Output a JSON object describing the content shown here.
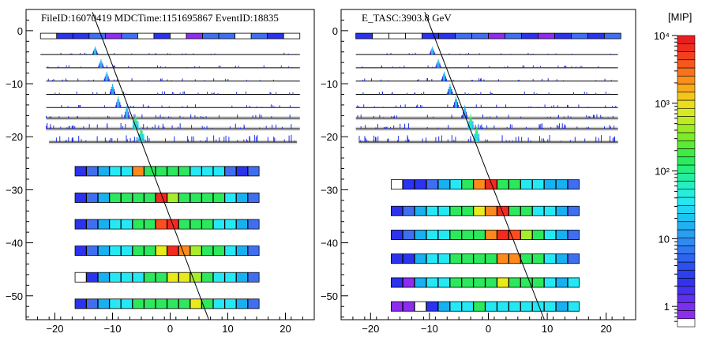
{
  "chart_data": [
    {
      "type": "heatmap",
      "title": "FileID:16070419 MDCTime:1151695867 EventID:18835",
      "xlim": [
        -25,
        25
      ],
      "ylim": [
        -54.5,
        4
      ],
      "xticks": [
        -20,
        -10,
        0,
        10,
        20
      ],
      "xtick_labels": [
        "−20",
        "−10",
        "0",
        "10",
        "20"
      ],
      "yticks": [
        0,
        -10,
        -20,
        -30,
        -40,
        -50
      ],
      "ytick_labels": [
        "0",
        "−10",
        "−20",
        "−30",
        "−40",
        "−50"
      ],
      "grid": false,
      "track": {
        "x1": -13.5,
        "y1": 3.5,
        "x2": 6.7,
        "y2": -54.5
      },
      "psd": {
        "y": -1,
        "x_range": [
          -22.5,
          22.5
        ],
        "colors": [
          "#ffffff",
          "#2b33ee",
          "#2b33ee",
          "#3f6ff0",
          "#8c2df0",
          "#3f6ff0",
          "#ffffff",
          "#2b33ee",
          "#ffffff",
          "#8c2df0",
          "#3f6ff0",
          "#3f6ff0",
          "#ffffff",
          "#3f6ff0",
          "#2b33ee",
          "#ffffff"
        ]
      },
      "stk_layers": [
        {
          "y": -4.5,
          "x_range": [
            -22.5,
            22.5
          ],
          "activity": 0.3,
          "peak_x": -13,
          "peak_h": 1.0
        },
        {
          "y": -7,
          "x_range": [
            -21.5,
            22.5
          ],
          "activity": 0.5,
          "peak_x": -12,
          "peak_h": 1.0
        },
        {
          "y": -9.5,
          "x_range": [
            -21.5,
            22.5
          ],
          "activity": 0.6,
          "peak_x": -11,
          "peak_h": 1.0
        },
        {
          "y": -12,
          "x_range": [
            -21.5,
            22.5
          ],
          "activity": 0.6,
          "peak_x": -10,
          "peak_h": 1.0
        },
        {
          "y": -14.5,
          "x_range": [
            -21.5,
            22.5
          ],
          "activity": 0.7,
          "peak_x": -9,
          "peak_h": 1.0
        },
        {
          "y": -16.5,
          "x_range": [
            -21.5,
            22.5
          ],
          "activity": 0.9,
          "peak_x": -7.5,
          "peak_h": 1.2
        },
        {
          "y": -18.5,
          "x_range": [
            -21.5,
            22.5
          ],
          "activity": 1.4,
          "peak_x": -6,
          "peak_h": 1.4
        },
        {
          "y": -21,
          "x_range": [
            -21,
            22
          ],
          "activity": 1.8,
          "peak_x": -5,
          "peak_h": 1.4
        }
      ],
      "bgo_layers": [
        {
          "y": -26.5,
          "x0": -16.5,
          "colors": [
            "#2b33ee",
            "#3f6ff0",
            "#17b0f0",
            "#25e8f5",
            "#25e8f5",
            "#ff8a1c",
            "#2ce85c",
            "#2ce85c",
            "#2ce85c",
            "#2ce85c",
            "#25e8f5",
            "#25e8f5",
            "#25e8f5",
            "#3f6ff0",
            "#2b33ee",
            "#3f6ff0"
          ]
        },
        {
          "y": -31.5,
          "x0": -16.5,
          "colors": [
            "#2b33ee",
            "#3f6ff0",
            "#17b0f0",
            "#2ce85c",
            "#2ce85c",
            "#2ce85c",
            "#2ce85c",
            "#f22a1f",
            "#a7ee2a",
            "#2ce85c",
            "#2ce85c",
            "#2ce85c",
            "#2ce85c",
            "#25e8f5",
            "#17b0f0",
            "#3f6ff0"
          ]
        },
        {
          "y": -36.5,
          "x0": -16.5,
          "colors": [
            "#2b33ee",
            "#3f6ff0",
            "#17b0f0",
            "#25e8f5",
            "#25e8f5",
            "#2ce85c",
            "#2ce85c",
            "#ff4d1f",
            "#f22a1f",
            "#2ce85c",
            "#2ce85c",
            "#2ce85c",
            "#25e8f5",
            "#25e8f5",
            "#17b0f0",
            "#3f6ff0"
          ]
        },
        {
          "y": -41.5,
          "x0": -16.5,
          "colors": [
            "#2b33ee",
            "#3f6ff0",
            "#17b0f0",
            "#25e8f5",
            "#25e8f5",
            "#2ce85c",
            "#2ce85c",
            "#e8ea1c",
            "#f22a1f",
            "#ff8a1c",
            "#a7ee2a",
            "#2ce85c",
            "#2ce85c",
            "#25e8f5",
            "#17b0f0",
            "#3f6ff0"
          ]
        },
        {
          "y": -46.5,
          "x0": -16.5,
          "colors": [
            "#ffffff",
            "#2b33ee",
            "#17b0f0",
            "#25e8f5",
            "#25e8f5",
            "#25e8f5",
            "#2ce85c",
            "#2ce85c",
            "#e8ea1c",
            "#e8ea1c",
            "#a7ee2a",
            "#2ce85c",
            "#25e8f5",
            "#25e8f5",
            "#17b0f0",
            "#3f6ff0"
          ]
        },
        {
          "y": -51.5,
          "x0": -16.5,
          "colors": [
            "#2b33ee",
            "#3f6ff0",
            "#17b0f0",
            "#25e8f5",
            "#25e8f5",
            "#2ce85c",
            "#2ce85c",
            "#2ce85c",
            "#2ce85c",
            "#2ce85c",
            "#e8ea1c",
            "#2ce85c",
            "#25e8f5",
            "#25e8f5",
            "#17b0f0",
            "#3f6ff0"
          ]
        }
      ]
    },
    {
      "type": "heatmap",
      "title": "E_TASC:3903.8 GeV",
      "xlim": [
        -25,
        25
      ],
      "ylim": [
        -54.5,
        4
      ],
      "xticks": [
        -20,
        -10,
        0,
        10,
        20
      ],
      "xtick_labels": [
        "−20",
        "−10",
        "0",
        "10",
        "20"
      ],
      "yticks": [
        0,
        -10,
        -20,
        -30,
        -40,
        -50
      ],
      "ytick_labels": [
        "0",
        "−10",
        "−20",
        "−30",
        "−40",
        "−50"
      ],
      "grid": false,
      "track": {
        "x1": -10.8,
        "y1": 3.5,
        "x2": 9.5,
        "y2": -54.5
      },
      "psd": {
        "y": -1,
        "x_range": [
          -22.5,
          22.5
        ],
        "colors": [
          "#2b33ee",
          "#ffffff",
          "#ffffff",
          "#ffffff",
          "#2b33ee",
          "#2b33ee",
          "#3f6ff0",
          "#3f6ff0",
          "#8c2df0",
          "#3f6ff0",
          "#2b33ee",
          "#8c2df0",
          "#2b33ee",
          "#3f6ff0",
          "#2b33ee",
          "#3f6ff0"
        ]
      },
      "stk_layers": [
        {
          "y": -4.5,
          "x_range": [
            -22.5,
            22
          ],
          "activity": 0.3,
          "peak_x": -9.5,
          "peak_h": 1.0
        },
        {
          "y": -7,
          "x_range": [
            -22.5,
            22
          ],
          "activity": 0.5,
          "peak_x": -8.5,
          "peak_h": 1.0
        },
        {
          "y": -9.5,
          "x_range": [
            -22.5,
            22
          ],
          "activity": 0.6,
          "peak_x": -7.5,
          "peak_h": 1.0
        },
        {
          "y": -12,
          "x_range": [
            -22.5,
            22
          ],
          "activity": 0.6,
          "peak_x": -6.5,
          "peak_h": 1.0
        },
        {
          "y": -14.5,
          "x_range": [
            -22.5,
            22
          ],
          "activity": 0.7,
          "peak_x": -5.5,
          "peak_h": 1.0
        },
        {
          "y": -16.5,
          "x_range": [
            -22.5,
            22
          ],
          "activity": 0.9,
          "peak_x": -4,
          "peak_h": 1.2
        },
        {
          "y": -18.5,
          "x_range": [
            -22.5,
            22
          ],
          "activity": 1.4,
          "peak_x": -3,
          "peak_h": 1.4
        },
        {
          "y": -21,
          "x_range": [
            -22,
            22
          ],
          "activity": 1.8,
          "peak_x": -2,
          "peak_h": 1.4
        }
      ],
      "bgo_layers": [
        {
          "y": -29,
          "x0": -16.5,
          "colors": [
            "#ffffff",
            "#2b33ee",
            "#2b33ee",
            "#3f6ff0",
            "#17b0f0",
            "#25e8f5",
            "#2ce85c",
            "#ff8a1c",
            "#f22a1f",
            "#2ce85c",
            "#2ce85c",
            "#25e8f5",
            "#25e8f5",
            "#17b0f0",
            "#17b0f0",
            "#3f6ff0"
          ]
        },
        {
          "y": -34,
          "x0": -16.5,
          "colors": [
            "#2b33ee",
            "#3f6ff0",
            "#17b0f0",
            "#25e8f5",
            "#25e8f5",
            "#2ce85c",
            "#2ce85c",
            "#e8ea1c",
            "#ff8a1c",
            "#f22a1f",
            "#2ce85c",
            "#2ce85c",
            "#25e8f5",
            "#25e8f5",
            "#17b0f0",
            "#3f6ff0"
          ]
        },
        {
          "y": -38.5,
          "x0": -16.5,
          "colors": [
            "#2b33ee",
            "#3f6ff0",
            "#17b0f0",
            "#25e8f5",
            "#25e8f5",
            "#2ce85c",
            "#2ce85c",
            "#2ce85c",
            "#ff8a1c",
            "#f22a1f",
            "#ff4d1f",
            "#a7ee2a",
            "#2ce85c",
            "#25e8f5",
            "#17b0f0",
            "#3f6ff0"
          ]
        },
        {
          "y": -43,
          "x0": -16.5,
          "colors": [
            "#2b33ee",
            "#2b33ee",
            "#17b0f0",
            "#25e8f5",
            "#25e8f5",
            "#2ce85c",
            "#2ce85c",
            "#2ce85c",
            "#2ce85c",
            "#ff8a1c",
            "#ff8a1c",
            "#2ce85c",
            "#2ce85c",
            "#25e8f5",
            "#17b0f0",
            "#3f6ff0"
          ]
        },
        {
          "y": -47.5,
          "x0": -16.5,
          "colors": [
            "#2b33ee",
            "#8c2df0",
            "#17b0f0",
            "#25e8f5",
            "#25e8f5",
            "#2ce85c",
            "#2ce85c",
            "#2ce85c",
            "#2ce85c",
            "#e8ea1c",
            "#2ce85c",
            "#2ce85c",
            "#2ce85c",
            "#25e8f5",
            "#17b0f0",
            "#25e8f5"
          ]
        },
        {
          "y": -52,
          "x0": -16.5,
          "colors": [
            "#8c2df0",
            "#8c2df0",
            "#ffffff",
            "#2b33ee",
            "#17b0f0",
            "#25e8f5",
            "#25e8f5",
            "#2ce85c",
            "#25e8f5",
            "#25e8f5",
            "#25e8f5",
            "#25e8f5",
            "#25e8f5",
            "#25e8f5",
            "#17b0f0",
            "#25e8f5"
          ]
        }
      ]
    }
  ],
  "colorbar": {
    "title": "[MIP]",
    "scale": "log",
    "range": [
      0.5,
      10000
    ],
    "ticks": [
      {
        "value": 1,
        "label": "1"
      },
      {
        "value": 10,
        "label": "10"
      },
      {
        "value": 100,
        "label": "10²"
      },
      {
        "value": 1000,
        "label": "10³"
      },
      {
        "value": 10000,
        "label": "10⁴"
      }
    ],
    "palette": [
      "#ffffff",
      "#8d2df0",
      "#7a2ef0",
      "#602ff0",
      "#4630f0",
      "#3233ee",
      "#2b3fee",
      "#2b50ee",
      "#2d63ef",
      "#3077f0",
      "#2f8bf0",
      "#2a9ef0",
      "#20b2f0",
      "#1cc4f0",
      "#22d6f2",
      "#27e6f0",
      "#25eedd",
      "#23efc1",
      "#24eea0",
      "#26ee7e",
      "#2aec5c",
      "#3cec45",
      "#5aec33",
      "#7cec2a",
      "#9cec25",
      "#bcec22",
      "#d8ea1e",
      "#ecdd1c",
      "#f5c51c",
      "#f8aa1c",
      "#fa8e1c",
      "#f8721c",
      "#f5581d",
      "#f2401e",
      "#ee2c20",
      "#e81f22"
    ]
  }
}
